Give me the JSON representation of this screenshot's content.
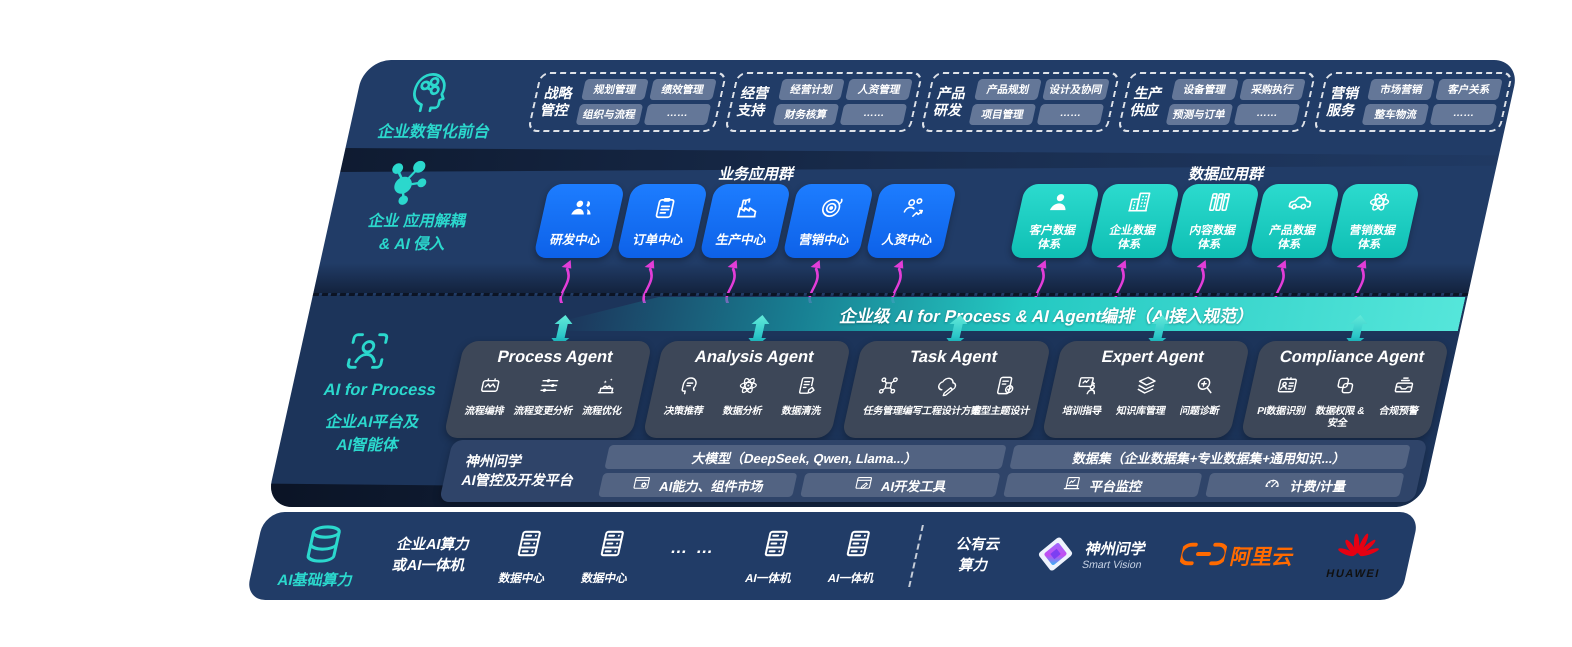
{
  "colors": {
    "accent": "#2bd8cd",
    "navy": "#213c67",
    "blue_box": "#1677f0",
    "teal_box": "#17cfc3",
    "magenta": "#e23dd8",
    "slate": "#3d4758",
    "pill": "rgba(193,203,222,0.42)",
    "aliyun_orange": "#ff6a00",
    "huawei_red": "#e60012"
  },
  "front_office": {
    "label": "企业数智化前台",
    "icon": "brain-icon",
    "groups": [
      {
        "name": "战略管控",
        "items": [
          "规划管理",
          "绩效管理",
          "组织与流程",
          "……"
        ]
      },
      {
        "name": "经营支持",
        "items": [
          "经营计划",
          "人资管理",
          "财务核算",
          "……"
        ]
      },
      {
        "name": "产品研发",
        "items": [
          "产品规划",
          "设计及协同",
          "项目管理",
          "……"
        ]
      },
      {
        "name": "生产供应",
        "items": [
          "设备管理",
          "采购执行",
          "预测与订单",
          "……"
        ]
      },
      {
        "name": "营销服务",
        "items": [
          "市场营销",
          "客户关系",
          "整车物流",
          "……"
        ]
      }
    ]
  },
  "app_layer": {
    "icon": "molecule-icon",
    "label_line1": "企业 应用解耦",
    "label_line2": "& AI 侵入",
    "business": {
      "title": "业务应用群",
      "apps": [
        {
          "label": "研发中心",
          "icon": "team-icon"
        },
        {
          "label": "订单中心",
          "icon": "clipboard-icon"
        },
        {
          "label": "生产中心",
          "icon": "factory-icon"
        },
        {
          "label": "营销中心",
          "icon": "target-icon"
        },
        {
          "label": "人资中心",
          "icon": "hr-icon"
        }
      ]
    },
    "data": {
      "title": "数据应用群",
      "apps": [
        {
          "label": "客户数据体系",
          "icon": "person-icon"
        },
        {
          "label": "企业数据体系",
          "icon": "building-icon"
        },
        {
          "label": "内容数据体系",
          "icon": "books-icon"
        },
        {
          "label": "产品数据体系",
          "icon": "car-icon"
        },
        {
          "label": "营销数据体系",
          "icon": "atom-icon"
        }
      ]
    }
  },
  "orchestration_bar": {
    "label": "企业级 AI for Process & AI Agent编排（AI接入规范）"
  },
  "ai_platform": {
    "icon": "person-scan-icon",
    "label_en": "AI for Process",
    "label_line2": "企业AI平台及",
    "label_line3": "AI智能体",
    "agents": [
      {
        "title": "Process Agent",
        "items": [
          {
            "label": "流程编排",
            "icon": "flow-icon"
          },
          {
            "label": "流程变更分析",
            "icon": "sliders-icon"
          },
          {
            "label": "流程优化",
            "icon": "conveyor-icon"
          }
        ]
      },
      {
        "title": "Analysis Agent",
        "items": [
          {
            "label": "决策推荐",
            "icon": "decision-icon"
          },
          {
            "label": "数据分析",
            "icon": "atom-icon"
          },
          {
            "label": "数据清洗",
            "icon": "clean-icon"
          }
        ]
      },
      {
        "title": "Task Agent",
        "items": [
          {
            "label": "任务管理",
            "icon": "nodes-icon"
          },
          {
            "label": "编写工程设计方案",
            "icon": "cloud-edit-icon"
          },
          {
            "label": "造型主题设计",
            "icon": "design-icon"
          }
        ]
      },
      {
        "title": "Expert Agent",
        "items": [
          {
            "label": "培训指导",
            "icon": "training-icon"
          },
          {
            "label": "知识库管理",
            "icon": "layers-icon"
          },
          {
            "label": "问题诊断",
            "icon": "diagnose-icon"
          }
        ]
      },
      {
        "title": "Compliance Agent",
        "items": [
          {
            "label": "PI数据识别",
            "icon": "idcard-icon"
          },
          {
            "label": "数据权限 & 安全",
            "icon": "datalock-icon"
          },
          {
            "label": "合规预警",
            "icon": "alert-icon"
          }
        ]
      }
    ]
  },
  "platform": {
    "label_line1": "神州问学",
    "label_line2": "AI管控及开发平台",
    "left_bar": "大模型（DeepSeek, Qwen, Llama...）",
    "left_cells": [
      {
        "label": "AI能力、组件市场",
        "icon": "window-gear-icon"
      },
      {
        "label": "AI开发工具",
        "icon": "window-pen-icon"
      }
    ],
    "right_bar": "数据集（企业数据集+专业数据集+通用知识...）",
    "right_cells": [
      {
        "label": "平台监控",
        "icon": "monitor-icon"
      },
      {
        "label": "计费/计量",
        "icon": "gauge-icon"
      }
    ]
  },
  "infra": {
    "label": "AI基础算力",
    "icon": "database-icon",
    "compute_line1": "企业AI算力",
    "compute_line2": "或AI一体机",
    "nodes": [
      {
        "label": "数据中心",
        "icon": "server-icon"
      },
      {
        "label": "数据中心",
        "icon": "server-icon"
      },
      {
        "label": "… …",
        "icon": "dots"
      },
      {
        "label": "AI一体机",
        "icon": "server-icon"
      },
      {
        "label": "AI一体机",
        "icon": "server-icon"
      }
    ],
    "cloud_line1": "公有云",
    "cloud_line2": "算力",
    "vendors": [
      {
        "name": "神州问学",
        "sub": "Smart Vision",
        "icon": "smartvision-logo"
      },
      {
        "name": "阿里云",
        "icon": "aliyun-logo"
      },
      {
        "name": "HUAWEI",
        "icon": "huawei-logo"
      }
    ]
  }
}
